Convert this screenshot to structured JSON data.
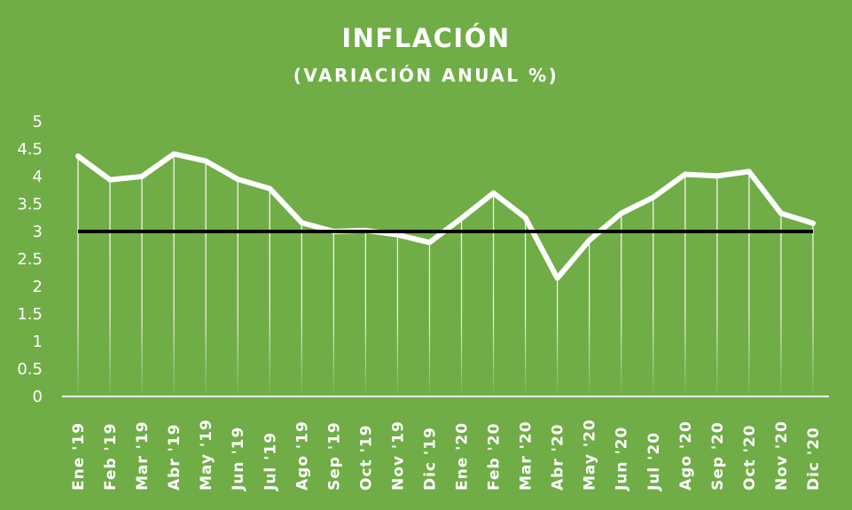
{
  "chart_data": {
    "type": "line",
    "title": "INFLACIÓN",
    "subtitle": "(VARIACIÓN ANUAL %)",
    "categories": [
      "Ene '19",
      "Feb '19",
      "Mar '19",
      "Abr '19",
      "May '19",
      "Jun '19",
      "Jul '19",
      "Ago '19",
      "Sep '19",
      "Oct '19",
      "Nov '19",
      "Dic '19",
      "Ene '20",
      "Feb '20",
      "Mar '20",
      "Abr '20",
      "May '20",
      "Jun '20",
      "Jul '20",
      "Ago '20",
      "Sep '20",
      "Oct '20",
      "Nov '20",
      "Dic '20"
    ],
    "series": [
      {
        "values": [
          4.37,
          3.94,
          4.0,
          4.41,
          4.28,
          3.95,
          3.78,
          3.16,
          3.0,
          3.02,
          2.94,
          2.8,
          3.24,
          3.7,
          3.25,
          2.15,
          2.84,
          3.33,
          3.62,
          4.04,
          4.01,
          4.09,
          3.33,
          3.15
        ],
        "color": "#FFFFFF"
      },
      {
        "values": [
          3,
          3,
          3,
          3,
          3,
          3,
          3,
          3,
          3,
          3,
          3,
          3,
          3,
          3,
          3,
          3,
          3,
          3,
          3,
          3,
          3,
          3,
          3,
          3
        ],
        "color": "#000000"
      }
    ],
    "yticks": [
      "0",
      "0.5",
      "1",
      "1.5",
      "2",
      "2.5",
      "3",
      "3.5",
      "4",
      "4.5",
      "5"
    ],
    "ylim": [
      0,
      5
    ],
    "drop_lines": true,
    "grid": false,
    "legend": "none",
    "background_color": "#70AD47"
  }
}
